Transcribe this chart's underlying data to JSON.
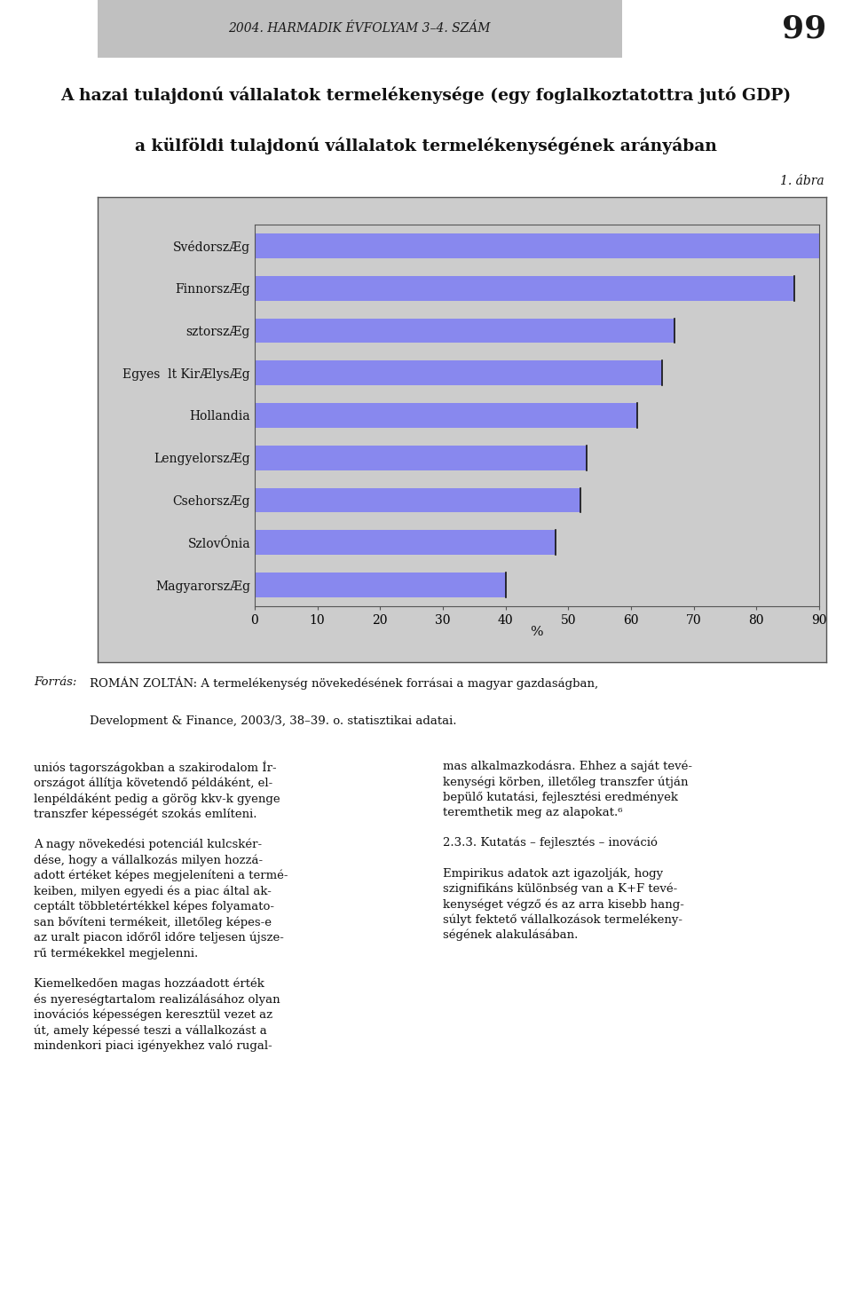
{
  "title_line1": "A hazai tulajdonú vállalatok termelékenysége (egy foglalkoztatottra jutó GDP)",
  "title_line2": "a külföldi tulajdonú vállalatok termelékenységének arányában",
  "header_text": "2004. HARMADIK ÉVFOLYAM 3–4. SZÁM",
  "page_number": "99",
  "figure_label": "1. ábra",
  "categories": [
    "SvédorszÆg",
    "FinnorszÆg",
    "sztorszÆg",
    "Egyes  lt KirÆlysÆg",
    "Hollandia",
    "LengyelorszÆg",
    "CsehorszÆg",
    "SzlovÓnia",
    "MagyarorszÆg"
  ],
  "values": [
    92,
    86,
    67,
    65,
    61,
    53,
    52,
    48,
    40
  ],
  "bar_color": "#8888ee",
  "plot_bg_color": "#cccccc",
  "xlabel": "%",
  "xlim": [
    0,
    90
  ],
  "xticks": [
    0,
    10,
    20,
    30,
    40,
    50,
    60,
    70,
    80,
    90
  ],
  "source_italic": "Forrás:",
  "source_bold": "ROMÁN ZOLTÁN: A termelékenység növekedésének forrásai a magyar gazdaságban,",
  "source_normal": "Development & Finance, 2003/3, 38–39. o. statisztikai adatai.",
  "body_left": "uniós tagországokban a szakirodalom Ír-\nországot állítja követendő példáként, el-\nlenpéldáként pedig a görög kkv-k gyenge\ntranszfer képességét szokás említeni.\n\nA nagy növekedési potenciál kulcskér-\ndése, hogy a vállalkozás milyen hozzá-\nadott értéket képes megjeleníteni a termé-\nkeiben, milyen egyedi és a piac által ak-\nceptált többletértékkel képes folyamato-\nsan bővíteni termékeit, illetőleg képes-e\naz uralt piacon időről időre teljesen újsze-\nrű termékekkel megjelenni.\n\nKiemelkedően magas hozzáadott érték\nés nyereségtartalom realizálásához olyan\ninovációs képességen keresztül vezet az\nút, amely képessé teszi a vállalkozást a\nmindenkori piaci igényekhez való rugal-",
  "body_right": "mas alkalmazkodásra. Ehhez a saját tevé-\nkenységi körben, illetőleg transzfer útján\nbepülő kutatási, fejlesztési eredmények\nteremthetik meg az alapokat.⁶\n\n2.3.3. Kutatás – fejlesztés – inováció\n\nEmpirikus adatok azt igazolják, hogy\nszignifikáns különbség van a K+F tevé-\nkenységet végző és az arra kisebb hang-\nsúlyt fektető vállalkozások termelékeny-\nségének alakulásában."
}
